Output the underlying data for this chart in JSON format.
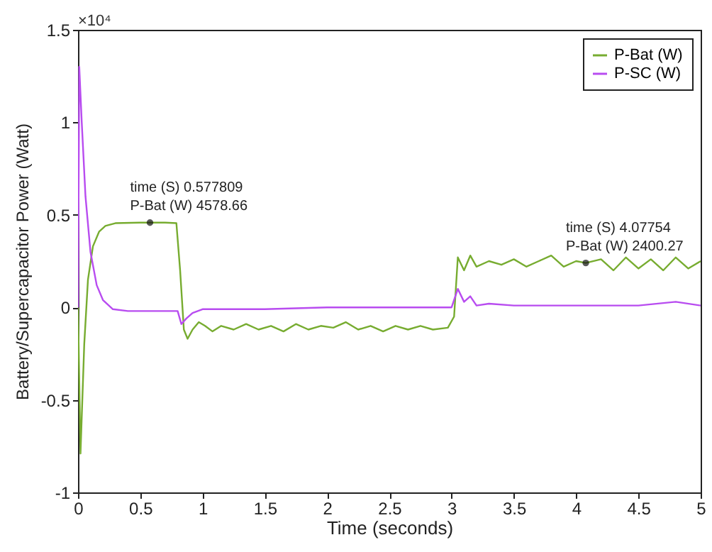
{
  "chart_data": {
    "type": "line",
    "xlabel": "Time (seconds)",
    "ylabel": "Battery/Supercapacitor Power (Watt)",
    "xlim": [
      0,
      5
    ],
    "xticks": [
      0,
      0.5,
      1,
      1.5,
      2,
      2.5,
      3,
      3.5,
      4,
      4.5,
      5
    ],
    "ylim": [
      -1,
      1.5
    ],
    "yticks": [
      -1,
      -0.5,
      0,
      0.5,
      1,
      1.5
    ],
    "legend": "top right",
    "grid": false,
    "annotations": [
      "×10⁴",
      {
        "text": "time (S) 0.577809\nP-Bat (W) 4578.66",
        "x": 0.577809,
        "y": 0.457866
      },
      {
        "text": "time (S) 4.07754\nP-Bat (W) 2400.27",
        "x": 4.07754,
        "y": 0.240027
      }
    ],
    "series": [
      {
        "name": "P-Bat (W)",
        "color": "#77ac30",
        "x": [
          0,
          0.02,
          0.05,
          0.08,
          0.12,
          0.17,
          0.22,
          0.3,
          0.5,
          0.577809,
          0.7,
          0.79,
          0.82,
          0.85,
          0.88,
          0.92,
          0.97,
          1.02,
          1.08,
          1.15,
          1.25,
          1.35,
          1.45,
          1.55,
          1.65,
          1.75,
          1.85,
          1.95,
          2.05,
          2.15,
          2.25,
          2.35,
          2.45,
          2.55,
          2.65,
          2.75,
          2.85,
          2.97,
          3.02,
          3.05,
          3.1,
          3.15,
          3.2,
          3.3,
          3.4,
          3.5,
          3.6,
          3.7,
          3.8,
          3.9,
          4.0,
          4.07754,
          4.2,
          4.3,
          4.4,
          4.5,
          4.6,
          4.7,
          4.8,
          4.9,
          5.0
        ],
        "values": [
          0,
          -0.79,
          -0.2,
          0.15,
          0.33,
          0.41,
          0.44,
          0.455,
          0.458,
          0.458,
          0.458,
          0.455,
          0.2,
          -0.12,
          -0.17,
          -0.12,
          -0.08,
          -0.1,
          -0.13,
          -0.1,
          -0.12,
          -0.09,
          -0.12,
          -0.1,
          -0.13,
          -0.09,
          -0.12,
          -0.1,
          -0.11,
          -0.08,
          -0.12,
          -0.1,
          -0.13,
          -0.1,
          -0.12,
          -0.1,
          -0.12,
          -0.11,
          -0.05,
          0.27,
          0.2,
          0.28,
          0.22,
          0.25,
          0.23,
          0.26,
          0.22,
          0.25,
          0.28,
          0.22,
          0.25,
          0.24,
          0.26,
          0.2,
          0.27,
          0.21,
          0.26,
          0.2,
          0.27,
          0.21,
          0.25
        ]
      },
      {
        "name": "P-SC (W)",
        "color": "#b84cf0",
        "x": [
          0,
          0.01,
          0.03,
          0.06,
          0.1,
          0.15,
          0.2,
          0.28,
          0.4,
          0.6,
          0.8,
          0.83,
          0.87,
          0.92,
          1.0,
          1.5,
          2.0,
          2.5,
          3.0,
          3.05,
          3.1,
          3.15,
          3.2,
          3.3,
          3.5,
          4.0,
          4.5,
          4.8,
          5.0
        ],
        "values": [
          0,
          1.3,
          1.0,
          0.6,
          0.3,
          0.12,
          0.04,
          -0.01,
          -0.02,
          -0.02,
          -0.02,
          -0.09,
          -0.06,
          -0.03,
          -0.01,
          -0.01,
          0,
          0,
          0,
          0.1,
          0.03,
          0.06,
          0.01,
          0.02,
          0.01,
          0.01,
          0.01,
          0.03,
          0.01
        ]
      }
    ]
  }
}
